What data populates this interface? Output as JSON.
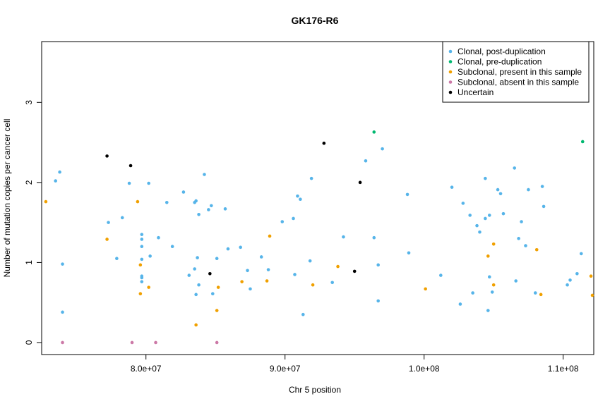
{
  "chart_data": {
    "type": "scatter",
    "title": "GK176-R6",
    "xlabel": "Chr 5 position",
    "ylabel": "Number of mutation copies per cancer cell",
    "xlim": [
      72500000,
      112200000
    ],
    "ylim": [
      -0.15,
      3.76
    ],
    "xticks": [
      80000000,
      90000000,
      100000000,
      110000000
    ],
    "xtick_labels": [
      "8.0e+07",
      "9.0e+07",
      "1.0e+08",
      "1.1e+08"
    ],
    "yticks": [
      0,
      1,
      2,
      3
    ],
    "ytick_labels": [
      "0",
      "1",
      "2",
      "3"
    ],
    "grid": false,
    "legend_position": "top-right",
    "series": [
      {
        "name": "Clonal, post-duplication",
        "color": "#56B4E9",
        "points": [
          [
            73500000,
            2.02
          ],
          [
            73800000,
            2.13
          ],
          [
            74000000,
            0.98
          ],
          [
            74000000,
            0.38
          ],
          [
            77300000,
            1.5
          ],
          [
            77900000,
            1.05
          ],
          [
            78300000,
            1.56
          ],
          [
            78800000,
            1.99
          ],
          [
            79700000,
            1.35
          ],
          [
            79700000,
            1.29
          ],
          [
            79700000,
            1.2
          ],
          [
            79700000,
            1.04
          ],
          [
            79700000,
            0.83
          ],
          [
            79700000,
            0.81
          ],
          [
            79700000,
            0.76
          ],
          [
            80200000,
            1.99
          ],
          [
            80300000,
            1.08
          ],
          [
            80900000,
            1.31
          ],
          [
            81500000,
            1.75
          ],
          [
            81900000,
            1.2
          ],
          [
            82700000,
            1.88
          ],
          [
            83100000,
            0.84
          ],
          [
            83500000,
            1.75
          ],
          [
            83500000,
            0.92
          ],
          [
            83600000,
            1.77
          ],
          [
            83600000,
            0.6
          ],
          [
            83700000,
            1.06
          ],
          [
            83800000,
            1.6
          ],
          [
            83800000,
            0.72
          ],
          [
            84200000,
            2.1
          ],
          [
            84500000,
            1.66
          ],
          [
            84700000,
            1.71
          ],
          [
            84800000,
            0.61
          ],
          [
            85100000,
            1.05
          ],
          [
            85700000,
            1.67
          ],
          [
            85900000,
            1.17
          ],
          [
            86800000,
            1.19
          ],
          [
            87300000,
            0.9
          ],
          [
            87500000,
            0.67
          ],
          [
            88300000,
            1.07
          ],
          [
            88800000,
            0.91
          ],
          [
            89800000,
            1.51
          ],
          [
            90600000,
            1.55
          ],
          [
            90700000,
            0.85
          ],
          [
            90900000,
            1.83
          ],
          [
            91100000,
            1.79
          ],
          [
            91300000,
            0.35
          ],
          [
            91800000,
            1.02
          ],
          [
            91900000,
            2.05
          ],
          [
            93400000,
            0.75
          ],
          [
            94200000,
            1.32
          ],
          [
            95800000,
            2.27
          ],
          [
            96400000,
            1.31
          ],
          [
            96700000,
            0.97
          ],
          [
            96700000,
            0.52
          ],
          [
            97000000,
            2.42
          ],
          [
            98800000,
            1.85
          ],
          [
            98900000,
            1.12
          ],
          [
            101200000,
            0.84
          ],
          [
            102000000,
            1.94
          ],
          [
            102600000,
            0.48
          ],
          [
            102800000,
            1.74
          ],
          [
            103300000,
            1.59
          ],
          [
            103500000,
            0.62
          ],
          [
            103800000,
            1.46
          ],
          [
            104000000,
            1.38
          ],
          [
            104400000,
            1.55
          ],
          [
            104400000,
            2.05
          ],
          [
            104600000,
            0.4
          ],
          [
            104700000,
            1.59
          ],
          [
            104700000,
            0.82
          ],
          [
            104900000,
            0.63
          ],
          [
            105300000,
            1.91
          ],
          [
            105500000,
            1.86
          ],
          [
            105700000,
            1.61
          ],
          [
            106500000,
            2.18
          ],
          [
            106600000,
            0.77
          ],
          [
            106800000,
            1.3
          ],
          [
            107000000,
            1.51
          ],
          [
            107300000,
            1.21
          ],
          [
            107500000,
            1.91
          ],
          [
            108000000,
            0.62
          ],
          [
            108500000,
            1.95
          ],
          [
            108600000,
            1.7
          ],
          [
            110300000,
            0.72
          ],
          [
            110500000,
            0.78
          ],
          [
            111000000,
            0.86
          ],
          [
            111300000,
            1.11
          ]
        ]
      },
      {
        "name": "Clonal, pre-duplication",
        "color": "#00B870",
        "points": [
          [
            96400000,
            2.63
          ],
          [
            111400000,
            2.51
          ]
        ]
      },
      {
        "name": "Subclonal, present in this sample",
        "color": "#F0A000",
        "points": [
          [
            72800000,
            1.76
          ],
          [
            77200000,
            1.29
          ],
          [
            79400000,
            1.76
          ],
          [
            79600000,
            0.61
          ],
          [
            79600000,
            0.97
          ],
          [
            80200000,
            0.69
          ],
          [
            83600000,
            0.22
          ],
          [
            85100000,
            0.4
          ],
          [
            85200000,
            0.69
          ],
          [
            86900000,
            0.76
          ],
          [
            88700000,
            0.77
          ],
          [
            88900000,
            1.33
          ],
          [
            92000000,
            0.72
          ],
          [
            93800000,
            0.95
          ],
          [
            100100000,
            0.67
          ],
          [
            104600000,
            1.08
          ],
          [
            105000000,
            1.23
          ],
          [
            105000000,
            0.72
          ],
          [
            108100000,
            1.16
          ],
          [
            108400000,
            0.6
          ],
          [
            112000000,
            0.83
          ],
          [
            112100000,
            0.59
          ]
        ]
      },
      {
        "name": "Subclonal, absent in this sample",
        "color": "#CC79A7",
        "points": [
          [
            74000000,
            0.0
          ],
          [
            79000000,
            0.0
          ],
          [
            80700000,
            0.0
          ],
          [
            85100000,
            0.0
          ]
        ]
      },
      {
        "name": "Uncertain",
        "color": "#000000",
        "points": [
          [
            77200000,
            2.33
          ],
          [
            78900000,
            2.21
          ],
          [
            84600000,
            0.86
          ],
          [
            92800000,
            2.49
          ],
          [
            95000000,
            0.89
          ],
          [
            95400000,
            2.0
          ]
        ]
      }
    ]
  }
}
